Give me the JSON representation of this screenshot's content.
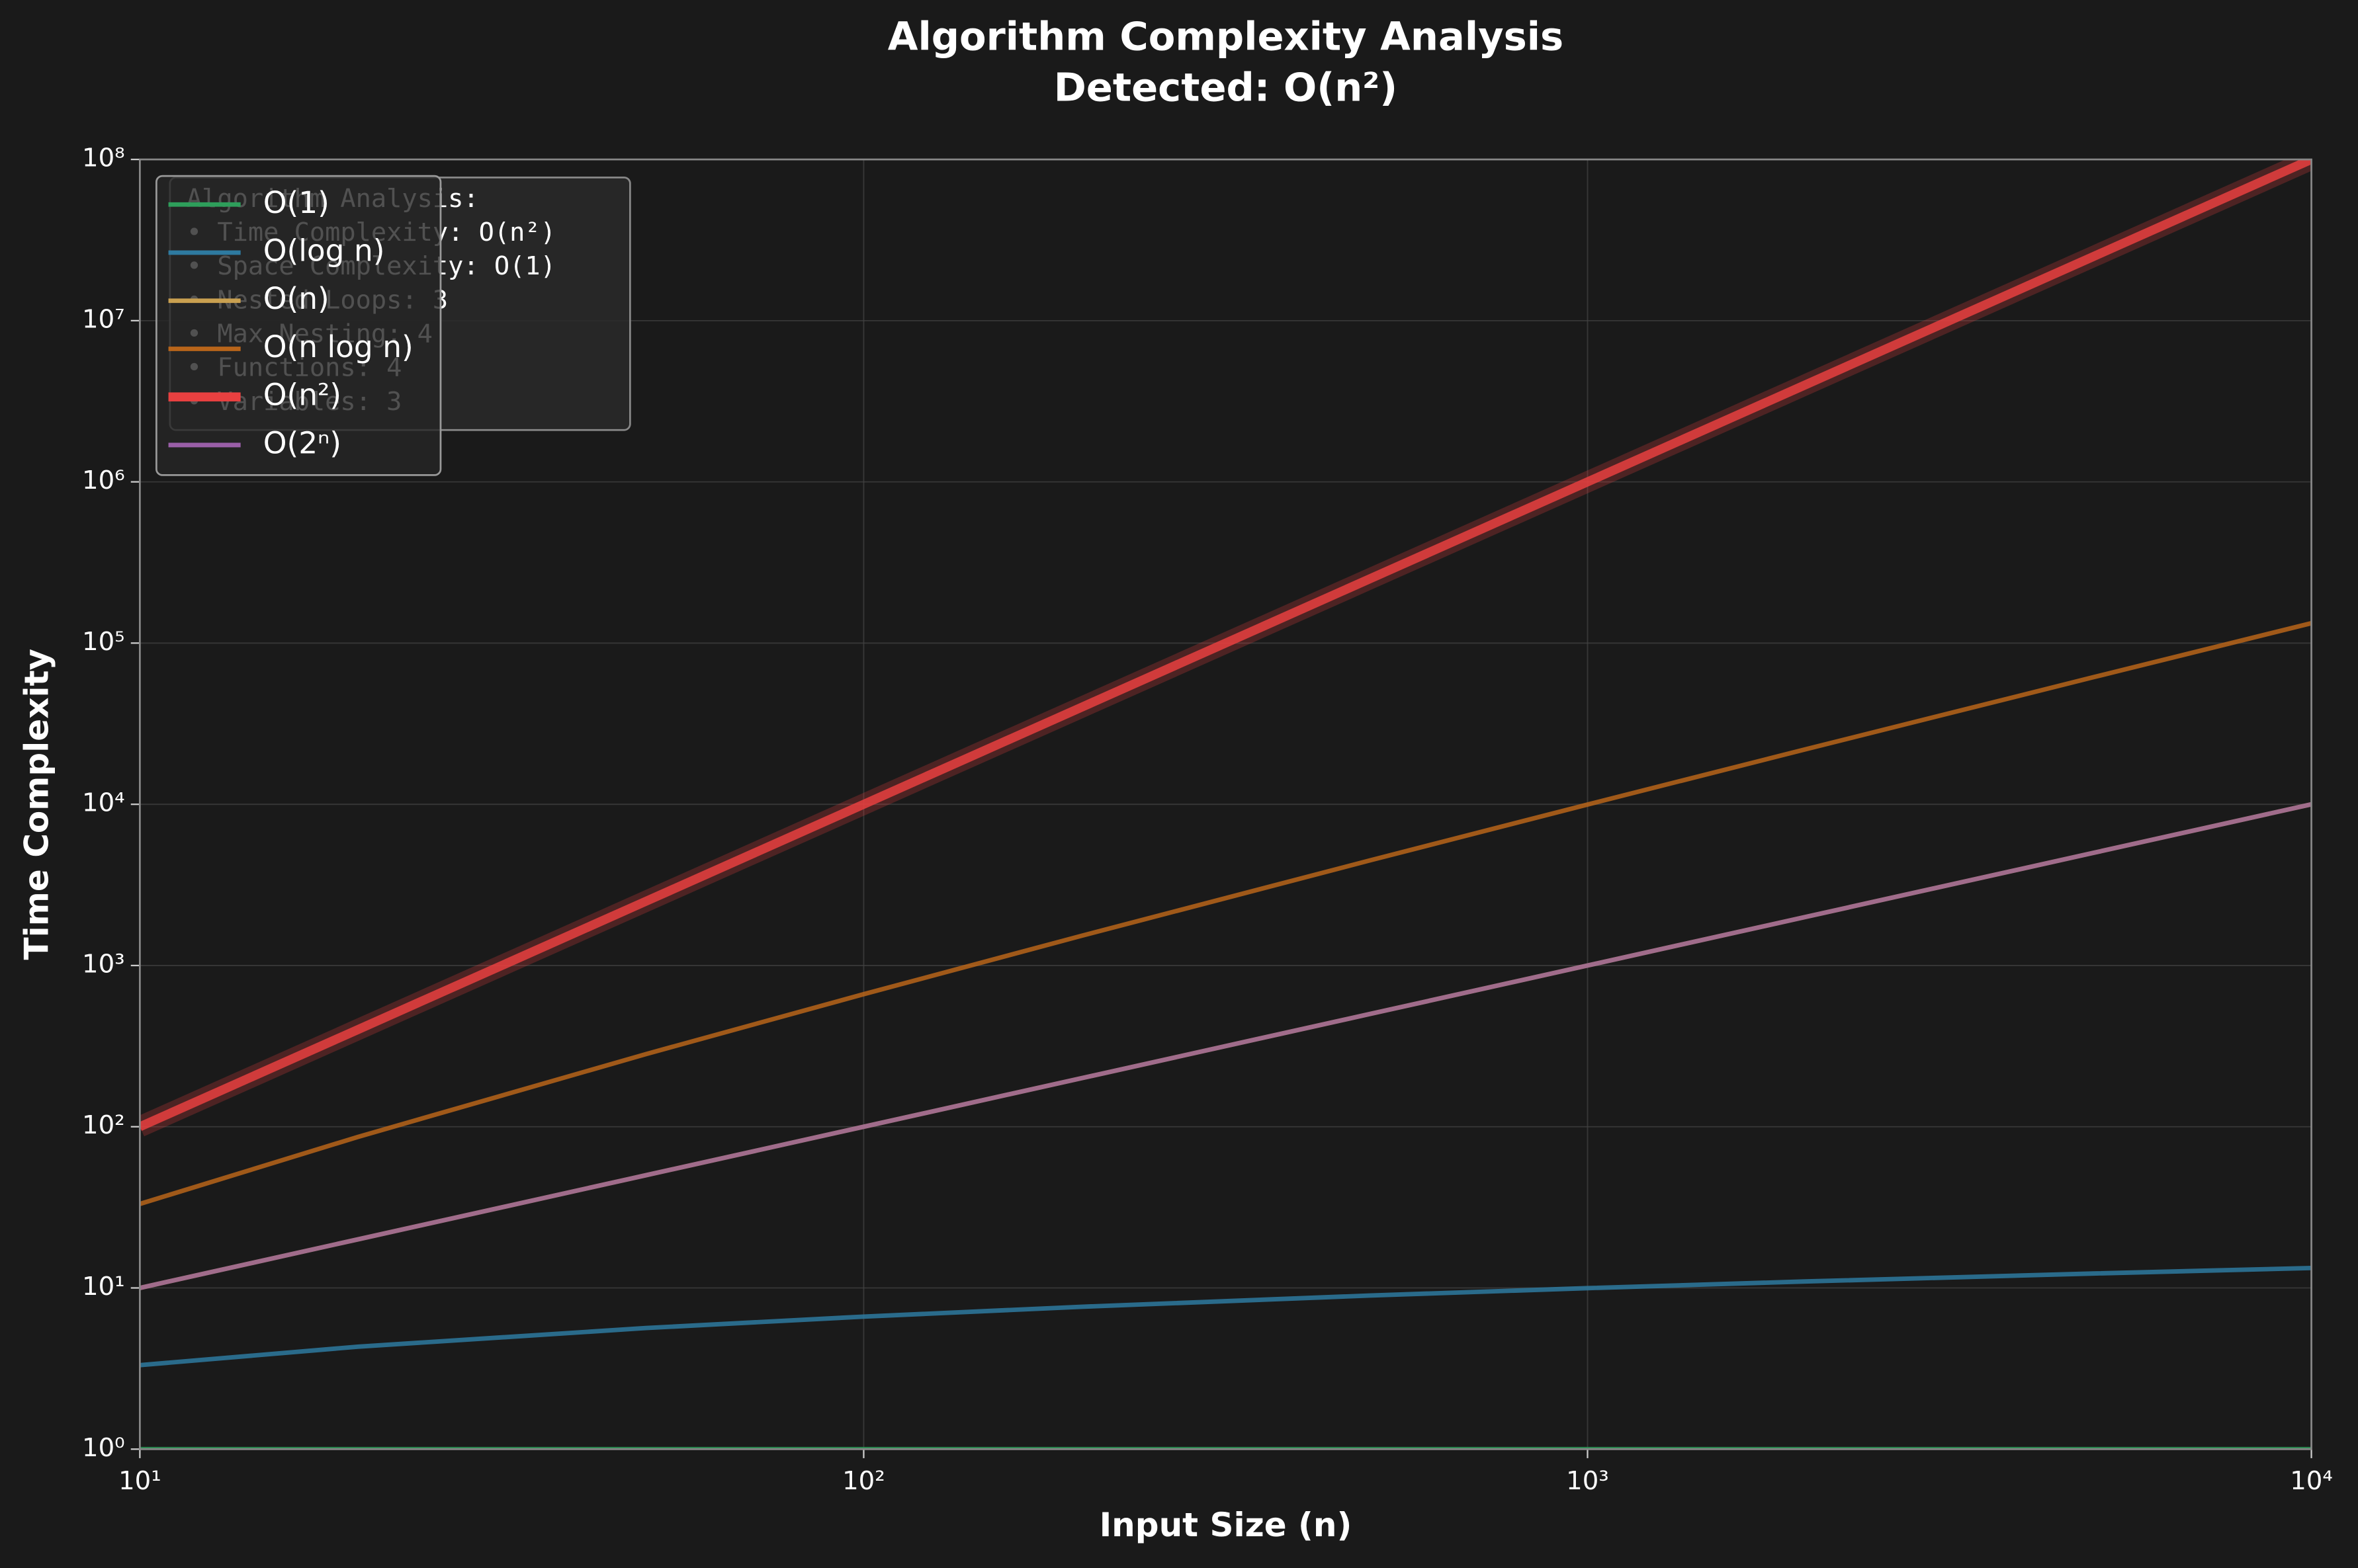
{
  "chart_data": {
    "type": "line",
    "title": "Algorithm Complexity Analysis",
    "subtitle": "Detected: O(n²)",
    "x_label": "Input Size (n)",
    "y_label": "Time Complexity",
    "xscale": "log",
    "yscale": "log",
    "grid": true,
    "legend": "upper left",
    "xlim": [
      10,
      10000
    ],
    "ylim": [
      1,
      100000000
    ],
    "xticks": [
      {
        "value": 10,
        "label": "10¹"
      },
      {
        "value": 100,
        "label": "10²"
      },
      {
        "value": 1000,
        "label": "10³"
      },
      {
        "value": 10000,
        "label": "10⁴"
      }
    ],
    "yticks": [
      {
        "value": 1,
        "label": "10⁰"
      },
      {
        "value": 10,
        "label": "10¹"
      },
      {
        "value": 100,
        "label": "10²"
      },
      {
        "value": 1000,
        "label": "10³"
      },
      {
        "value": 10000,
        "label": "10⁴"
      },
      {
        "value": 100000,
        "label": "10⁵"
      },
      {
        "value": 1000000,
        "label": "10⁶"
      },
      {
        "value": 10000000,
        "label": "10⁷"
      },
      {
        "value": 100000000,
        "label": "10⁸"
      }
    ],
    "x": [
      10,
      20,
      50,
      100,
      200,
      500,
      1000,
      2000,
      5000,
      10000
    ],
    "series": [
      {
        "name": "O(1)",
        "color": "#2e9e5b",
        "values": [
          1,
          1,
          1,
          1,
          1,
          1,
          1,
          1,
          1,
          1
        ]
      },
      {
        "name": "O(log n)",
        "color": "#2e7aa0",
        "values": [
          3.32,
          4.32,
          5.64,
          6.64,
          7.64,
          8.97,
          9.97,
          10.97,
          12.29,
          13.29
        ]
      },
      {
        "name": "O(n)",
        "color": "#c9a050",
        "values": [
          10,
          20,
          50,
          100,
          200,
          500,
          1000,
          2000,
          5000,
          10000
        ]
      },
      {
        "name": "O(n log n)",
        "color": "#b8651a",
        "values": [
          33.2,
          86.4,
          282,
          664,
          1529,
          4483,
          9966,
          21932,
          61439,
          132877
        ]
      },
      {
        "name": "O(n²)",
        "color": "#e84040",
        "values": [
          100,
          400,
          2500,
          10000,
          40000,
          250000,
          1000000,
          4000000,
          25000000,
          100000000
        ]
      },
      {
        "name": "O(2ⁿ)",
        "color": "#9a5fa8",
        "values": [
          10,
          20,
          50,
          100,
          200,
          500,
          1000,
          2000,
          5000,
          10000
        ]
      }
    ],
    "annotation": [
      "Algorithm Analysis:",
      "• Time Complexity: O(n²)",
      "• Space Complexity: O(1)",
      "• Nested Loops: 3",
      "• Max Nesting: 4",
      "• Functions: 4",
      "• Variables: 3"
    ]
  }
}
